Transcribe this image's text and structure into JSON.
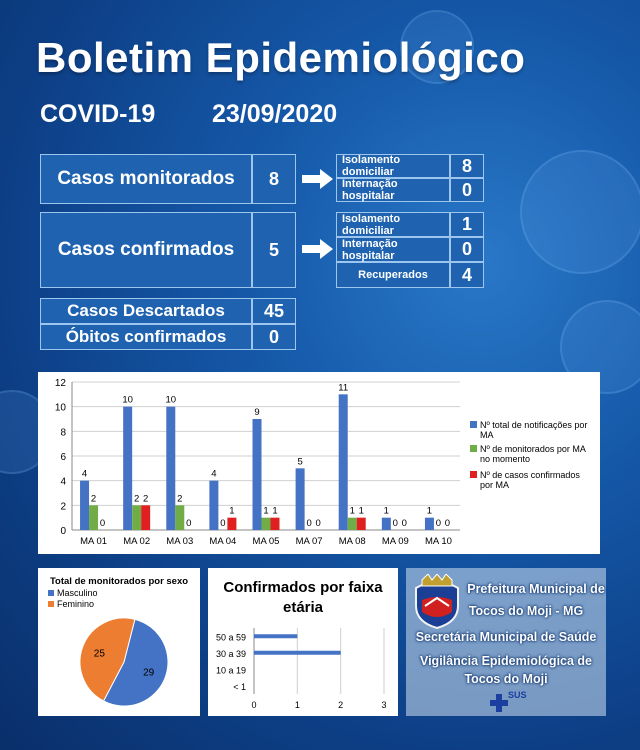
{
  "header": {
    "title": "Boletim Epidemiológico",
    "covid": "COVID-19",
    "date": "23/09/2020"
  },
  "stats": {
    "monitored_label": "Casos monitorados",
    "monitored_value": "8",
    "confirmed_label": "Casos confirmados",
    "confirmed_value": "5",
    "discarded_label": "Casos Descartados",
    "discarded_value": "45",
    "deaths_label": "Óbitos confirmados",
    "deaths_value": "0",
    "monitored_breakdown": [
      {
        "label": "Isolamento domiciliar",
        "value": "8"
      },
      {
        "label": "Internação hospitalar",
        "value": "0"
      }
    ],
    "confirmed_breakdown": [
      {
        "label": "Isolamento domiciliar",
        "value": "1"
      },
      {
        "label": "Internação hospitalar",
        "value": "0"
      },
      {
        "label": "Recuperados",
        "value": "4"
      }
    ]
  },
  "chart_data": [
    {
      "type": "bar",
      "categories": [
        "MA 01",
        "MA 02",
        "MA 03",
        "MA 04",
        "MA 05",
        "MA 07",
        "MA 08",
        "MA 09",
        "MA 10"
      ],
      "series": [
        {
          "name": "Nº total de notificações por MA",
          "color": "#4472c4",
          "values": [
            4,
            10,
            10,
            4,
            9,
            5,
            11,
            1,
            1
          ]
        },
        {
          "name": "Nº de monitorados por MA no momento",
          "color": "#70ad47",
          "values": [
            2,
            2,
            2,
            0,
            1,
            0,
            1,
            0,
            0
          ]
        },
        {
          "name": "Nº de casos confirmados por MA",
          "color": "#e02020",
          "values": [
            0,
            2,
            0,
            1,
            1,
            0,
            1,
            0,
            0
          ]
        }
      ],
      "ylim": [
        0,
        12
      ],
      "yticks": [
        "0",
        "2",
        "4",
        "6",
        "8",
        "10",
        "12"
      ],
      "legend": "right",
      "grid": true
    },
    {
      "type": "pie",
      "title": "Total de monitorados por sexo",
      "labels": [
        "Masculino",
        "Feminino"
      ],
      "values": [
        29,
        25
      ],
      "colors": [
        "#4472c4",
        "#ed7d31"
      ],
      "legend": "top-left"
    },
    {
      "type": "bar",
      "orientation": "horizontal",
      "title": "Confirmados por faixa etária",
      "categories": [
        "50 a 59",
        "30 a 39",
        "10 a 19",
        "< 1"
      ],
      "values": [
        1,
        2,
        0,
        0
      ],
      "xlim": [
        0,
        3
      ],
      "xticks": [
        "0",
        "1",
        "2",
        "3"
      ],
      "color": "#4472c4"
    }
  ],
  "institution": {
    "line1": "Prefeitura Municipal de",
    "line2": "Tocos do Moji - MG",
    "line3": "Secretária Municipal de Saúde",
    "line4": "Vigilância Epidemiológica de",
    "line5": "Tocos do Moji",
    "sus": "SUS"
  }
}
